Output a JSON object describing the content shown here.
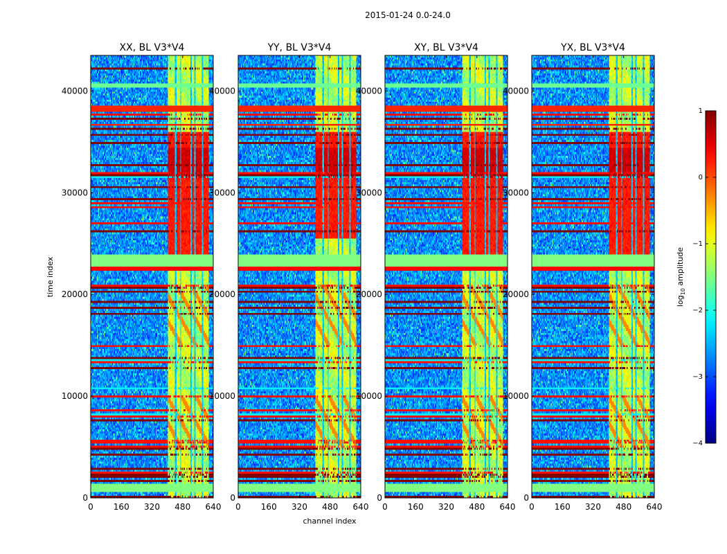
{
  "figure": {
    "suptitle": "2015-01-24 0.0-24.0",
    "xlabel": "channel index",
    "ylabel": "time index",
    "colorbar_label_base": "log",
    "colorbar_label_sub": "10",
    "colorbar_label_rest": " amplitude"
  },
  "chart_data": {
    "type": "heatmap",
    "colormap": "jet",
    "panels": [
      {
        "title": "XX, BL V3*V4",
        "variant": 0
      },
      {
        "title": "YY, BL V3*V4",
        "variant": 1
      },
      {
        "title": "XY, BL V3*V4",
        "variant": 2
      },
      {
        "title": "YX, BL V3*V4",
        "variant": 3
      }
    ],
    "x_range": [
      0,
      640
    ],
    "y_range": [
      0,
      43500
    ],
    "x_ticks": [
      0,
      160,
      320,
      480,
      640
    ],
    "y_ticks": [
      0,
      10000,
      20000,
      30000,
      40000
    ],
    "x_tick_labels": [
      "0",
      "160",
      "320",
      "480",
      "640"
    ],
    "y_tick_labels": [
      "0",
      "10000",
      "20000",
      "30000",
      "40000"
    ],
    "colorbar": {
      "range": [
        -4,
        1
      ],
      "ticks": [
        -4,
        -3,
        -2,
        -1,
        0,
        1
      ],
      "tick_labels": [
        "−4",
        "−3",
        "−2",
        "−1",
        "0",
        "1"
      ]
    },
    "band_channel_start": 405,
    "band_channel_end": 615,
    "band_gap_channels": [
      445,
      470,
      525,
      545,
      585
    ],
    "flagged_rows": [
      {
        "y0": 600,
        "y1": 1400,
        "value": -1.5
      },
      {
        "y0": 22300,
        "y1": 22700,
        "value": 0.4
      },
      {
        "y0": 22700,
        "y1": 24000,
        "value": -1.5
      },
      {
        "y0": 38000,
        "y1": 38600,
        "value": 0.2
      },
      {
        "y0": 36500,
        "y1": 36800,
        "value": 0.2
      },
      {
        "y0": 40400,
        "y1": 40700,
        "value": -1.6
      }
    ],
    "high_amplitude_blocks": [
      {
        "y0": 24000,
        "y1": 36000,
        "value": 0.25
      },
      {
        "y0": 31500,
        "y1": 34500,
        "value": 0.6
      }
    ]
  }
}
